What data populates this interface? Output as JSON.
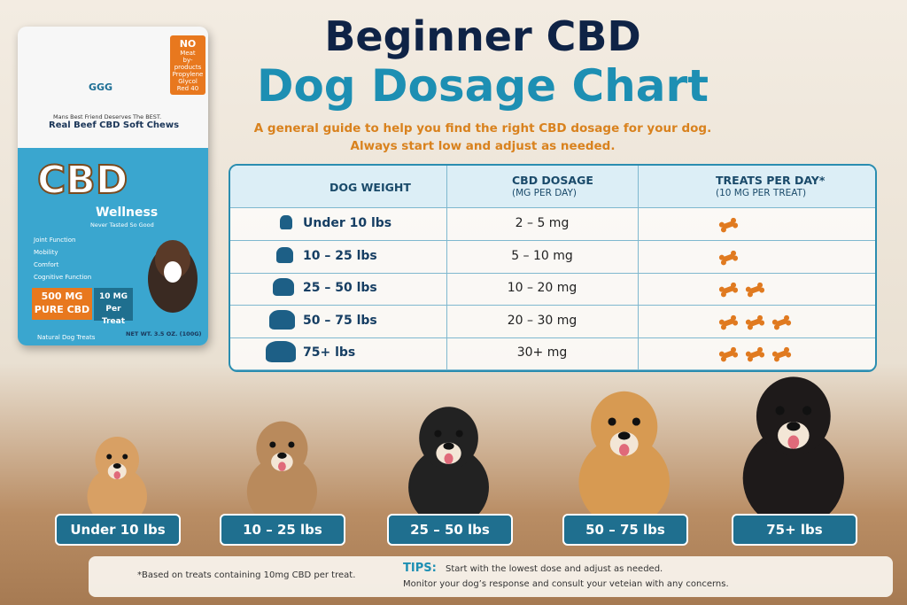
{
  "header": {
    "title_line1": "Beginner CBD",
    "title_line2": "Dog Dosage Chart",
    "subtitle_line1": "A general guide to help you find the right CBD dosage for your dog.",
    "subtitle_line2": "Always start low and adjust as needed."
  },
  "table": {
    "columns": [
      {
        "title": "DOG WEIGHT"
      },
      {
        "title": "CBD DOSAGE",
        "subtitle": "(MG PER DAY)"
      },
      {
        "title": "TREATS PER DAY*",
        "subtitle": "(10 MG PER TREAT)"
      }
    ],
    "rows": [
      {
        "weight": "Under 10 lbs",
        "dosage": "2 – 5 mg",
        "treats": 1
      },
      {
        "weight": "10 – 25 lbs",
        "dosage": "5 – 10 mg",
        "treats": 1
      },
      {
        "weight": "25 – 50 lbs",
        "dosage": "10 – 20 mg",
        "treats": 2
      },
      {
        "weight": "50 – 75 lbs",
        "dosage": "20 – 30 mg",
        "treats": 3
      },
      {
        "weight": "75+ lbs",
        "dosage": "30+ mg",
        "treats": 3
      }
    ]
  },
  "dog_labels": [
    "Under 10 lbs",
    "10 – 25 lbs",
    "25 – 50 lbs",
    "50 – 75 lbs",
    "75+ lbs"
  ],
  "footer": {
    "note": "*Based on treats containing 10mg CBD per treat.",
    "tips_label": "TIPS:",
    "tips_line1": "Start with the lowest dose and adjust as needed.",
    "tips_line2": "Monitor your dog’s response and consult your veteian with any concerns."
  },
  "product": {
    "brand": "GGG",
    "badge": [
      "NO",
      "Meat",
      "by-products",
      "Propylene",
      "Glycol",
      "Red 40"
    ],
    "tagline": "Mans Best Friend Deserves The BEST.",
    "name": "Real Beef CBD Soft Chews",
    "logo": "CBD",
    "line": "Wellness",
    "slogan": "Never Tasted So Good",
    "benefits": [
      "Joint Function",
      "Mobility",
      "Comfort",
      "Cognitive Function"
    ],
    "strength": "500 MG",
    "strength_note": "PURE CBD",
    "per_treat": "10 MG",
    "per_treat_note": "Per Treat",
    "footer_left": "Natural Dog Treats",
    "footer_right": "NET WT. 3.5 OZ. (100G)"
  }
}
